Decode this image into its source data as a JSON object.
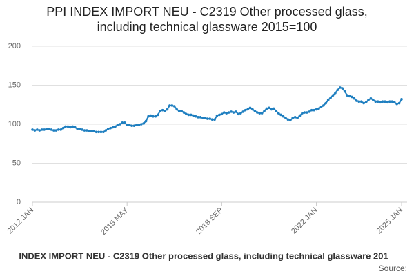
{
  "chart_data": {
    "type": "line",
    "title": "PPI INDEX IMPORT NEU - C2319 Other processed glass, including technical glassware 2015=100",
    "caption": "INDEX IMPORT NEU - C2319 Other processed glass, including technical glassware 201",
    "source": "Source:",
    "categories": [
      "2012 JAN",
      null,
      null,
      null,
      null,
      null,
      null,
      null,
      null,
      null,
      null,
      null,
      null,
      null,
      null,
      null,
      null,
      null,
      null,
      null,
      null,
      null,
      null,
      null,
      null,
      null,
      null,
      null,
      null,
      null,
      null,
      null,
      null,
      null,
      null,
      null,
      null,
      null,
      null,
      null,
      "2015 MAY",
      null,
      null,
      null,
      null,
      null,
      null,
      null,
      null,
      null,
      null,
      null,
      null,
      null,
      null,
      null,
      null,
      null,
      null,
      null,
      null,
      null,
      null,
      null,
      null,
      null,
      null,
      null,
      null,
      null,
      null,
      null,
      null,
      null,
      null,
      null,
      null,
      null,
      null,
      null,
      "2018 SEP",
      null,
      null,
      null,
      null,
      null,
      null,
      null,
      null,
      null,
      null,
      null,
      null,
      null,
      null,
      null,
      null,
      null,
      null,
      null,
      null,
      null,
      null,
      null,
      null,
      null,
      null,
      null,
      null,
      null,
      null,
      null,
      null,
      null,
      null,
      null,
      null,
      null,
      null,
      null,
      "2022 JAN",
      null,
      null,
      null,
      null,
      null,
      null,
      null,
      null,
      null,
      null,
      null,
      null,
      null,
      null,
      null,
      null,
      null,
      null,
      null,
      null,
      null,
      null,
      null,
      null,
      null,
      null,
      null,
      null,
      null,
      null,
      null,
      null,
      null,
      null,
      null,
      "2025 JAN"
    ],
    "series": [
      {
        "name": "PPI INDEX IMPORT NEU - C2319",
        "color": "#1f7fc0",
        "values": [
          93,
          92,
          93,
          92,
          93,
          93,
          94,
          94,
          93,
          92,
          92,
          93,
          93,
          95,
          97,
          97,
          96,
          97,
          96,
          94,
          94,
          93,
          92,
          92,
          91,
          91,
          91,
          90,
          90,
          90,
          90,
          92,
          94,
          95,
          96,
          97,
          99,
          100,
          102,
          102,
          99,
          99,
          98,
          98,
          99,
          99,
          100,
          101,
          104,
          110,
          111,
          110,
          110,
          112,
          117,
          118,
          117,
          119,
          124,
          124,
          123,
          119,
          117,
          117,
          115,
          113,
          112,
          112,
          111,
          110,
          109,
          109,
          108,
          108,
          107,
          107,
          106,
          106,
          111,
          112,
          113,
          115,
          114,
          115,
          116,
          115,
          116,
          113,
          114,
          116,
          118,
          119,
          121,
          119,
          117,
          115,
          114,
          114,
          117,
          120,
          121,
          119,
          120,
          117,
          114,
          112,
          110,
          108,
          106,
          105,
          108,
          109,
          108,
          111,
          114,
          115,
          115,
          116,
          118,
          118,
          119,
          120,
          122,
          124,
          127,
          131,
          134,
          137,
          140,
          144,
          147,
          146,
          142,
          137,
          136,
          135,
          133,
          130,
          129,
          129,
          127,
          128,
          131,
          133,
          131,
          129,
          129,
          128,
          129,
          129,
          128,
          129,
          129,
          128,
          126,
          127,
          132
        ]
      }
    ],
    "ylim": [
      0,
      200
    ],
    "yticks": [
      0,
      50,
      100,
      150,
      200
    ],
    "grid": true
  }
}
